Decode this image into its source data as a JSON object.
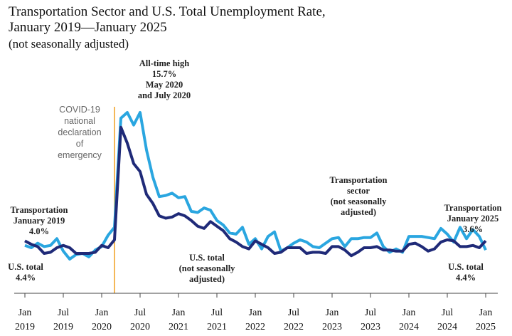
{
  "chart_data": {
    "type": "line",
    "title": [
      "Transportation Sector and U.S. Total Unemployment Rate,",
      "January 2019—January 2025"
    ],
    "subtitle": "(not seasonally adjusted)",
    "categories": [
      "Jan 2019",
      null,
      null,
      null,
      null,
      null,
      "Jul 2019",
      null,
      null,
      null,
      null,
      null,
      "Jan 2020",
      null,
      null,
      null,
      null,
      null,
      "Jul 2020",
      null,
      null,
      null,
      null,
      null,
      "Jan 2021",
      null,
      null,
      null,
      null,
      null,
      "Jul 2021",
      null,
      null,
      null,
      null,
      null,
      "Jan 2022",
      null,
      null,
      null,
      null,
      null,
      "Jul 2022",
      null,
      null,
      null,
      null,
      null,
      "Jan 2023",
      null,
      null,
      null,
      null,
      null,
      "Jul 2023",
      null,
      null,
      null,
      null,
      null,
      "Jan 2024",
      null,
      null,
      null,
      null,
      null,
      "Jul 2024",
      null,
      null,
      null,
      null,
      null,
      "Jan 2025"
    ],
    "series": [
      {
        "name": "Transportation sector",
        "color": "#2aa6e0",
        "values": [
          4.0,
          3.8,
          4.2,
          3.9,
          4.0,
          4.6,
          3.5,
          2.8,
          3.2,
          3.3,
          3.0,
          3.6,
          3.9,
          4.9,
          5.6,
          15.2,
          15.7,
          14.6,
          15.7,
          12.4,
          10.0,
          8.3,
          8.4,
          8.6,
          8.2,
          8.3,
          7.0,
          6.9,
          7.3,
          7.1,
          6.2,
          5.8,
          5.1,
          5.0,
          5.6,
          4.1,
          4.6,
          3.7,
          4.8,
          5.2,
          3.5,
          3.8,
          4.2,
          4.5,
          4.3,
          3.9,
          3.8,
          4.2,
          4.6,
          4.7,
          3.9,
          4.6,
          4.6,
          4.7,
          4.7,
          5.1,
          3.9,
          3.4,
          3.7,
          3.4,
          4.8,
          4.8,
          4.8,
          4.7,
          4.6,
          5.5,
          5.0,
          4.3,
          5.6,
          4.6,
          5.4,
          4.8,
          3.6
        ]
      },
      {
        "name": "U.S. total",
        "color": "#1f2a78",
        "values": [
          4.4,
          4.1,
          3.9,
          3.3,
          3.4,
          3.8,
          4.0,
          3.8,
          3.3,
          3.3,
          3.3,
          3.4,
          4.0,
          3.8,
          4.5,
          14.4,
          13.0,
          11.2,
          10.5,
          8.5,
          7.7,
          6.6,
          6.4,
          6.5,
          6.8,
          6.6,
          6.2,
          5.7,
          5.5,
          6.1,
          5.7,
          5.3,
          4.6,
          4.3,
          3.9,
          3.7,
          4.4,
          4.1,
          3.8,
          3.3,
          3.4,
          3.8,
          3.8,
          3.8,
          3.3,
          3.4,
          3.4,
          3.3,
          3.9,
          3.9,
          3.6,
          3.1,
          3.4,
          3.8,
          3.8,
          3.9,
          3.6,
          3.6,
          3.5,
          3.5,
          4.1,
          4.2,
          3.9,
          3.5,
          3.7,
          4.3,
          4.5,
          4.4,
          3.9,
          3.9,
          4.0,
          3.8,
          4.4
        ]
      }
    ],
    "annotations": [
      [
        "Transportation",
        "January 2019",
        "4.0%"
      ],
      [
        "U.S. total",
        "4.4%"
      ],
      [
        "All-time high",
        "15.7%",
        "May 2020",
        "and July 2020"
      ],
      [
        "COVID-19",
        "national",
        "declaration",
        "of",
        "emergency"
      ],
      [
        "Transportation",
        "sector",
        "(not seasonally",
        "adjusted)"
      ],
      [
        "U.S. total",
        "(not seasonally",
        "adjusted)"
      ],
      [
        "Transportation",
        "January 2025",
        "3.6%"
      ],
      [
        "U.S. total",
        "4.4%"
      ]
    ]
  }
}
